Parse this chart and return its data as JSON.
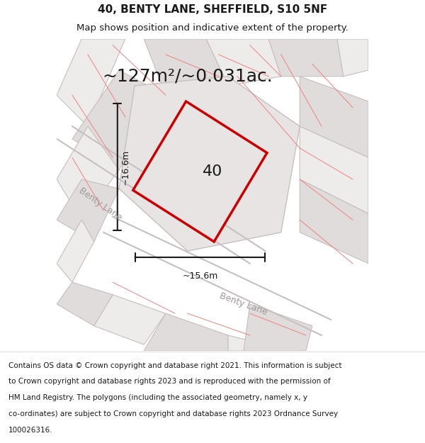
{
  "title_line1": "40, BENTY LANE, SHEFFIELD, S10 5NF",
  "title_line2": "Map shows position and indicative extent of the property.",
  "area_label": "~127m²/~0.031ac.",
  "property_number": "40",
  "dim_horizontal": "~15.6m",
  "dim_vertical": "~16.6m",
  "road_label_1": "Benty Lane",
  "road_label_2": "Benty Lane",
  "footer_lines": [
    "Contains OS data © Crown copyright and database right 2021. This information is subject",
    "to Crown copyright and database rights 2023 and is reproduced with the permission of",
    "HM Land Registry. The polygons (including the associated geometry, namely x, y",
    "co-ordinates) are subject to Crown copyright and database rights 2023 Ordnance Survey",
    "100026316."
  ],
  "map_bg": "#f5f3f3",
  "plot_border_color": "#cc0000",
  "gray_parcel_fill": "#e0dcdc",
  "gray_line": "#c8bebe",
  "red_c": "#f08080",
  "road_color": "#c8c0c0",
  "dim_line_color": "#1a1a1a",
  "footer_bg": "#ffffff",
  "title_fontsize": 11,
  "subtitle_fontsize": 9.5,
  "area_fontsize": 18,
  "number_fontsize": 16,
  "dim_fontsize": 9,
  "road_fontsize": 9,
  "footer_fontsize": 7.5
}
